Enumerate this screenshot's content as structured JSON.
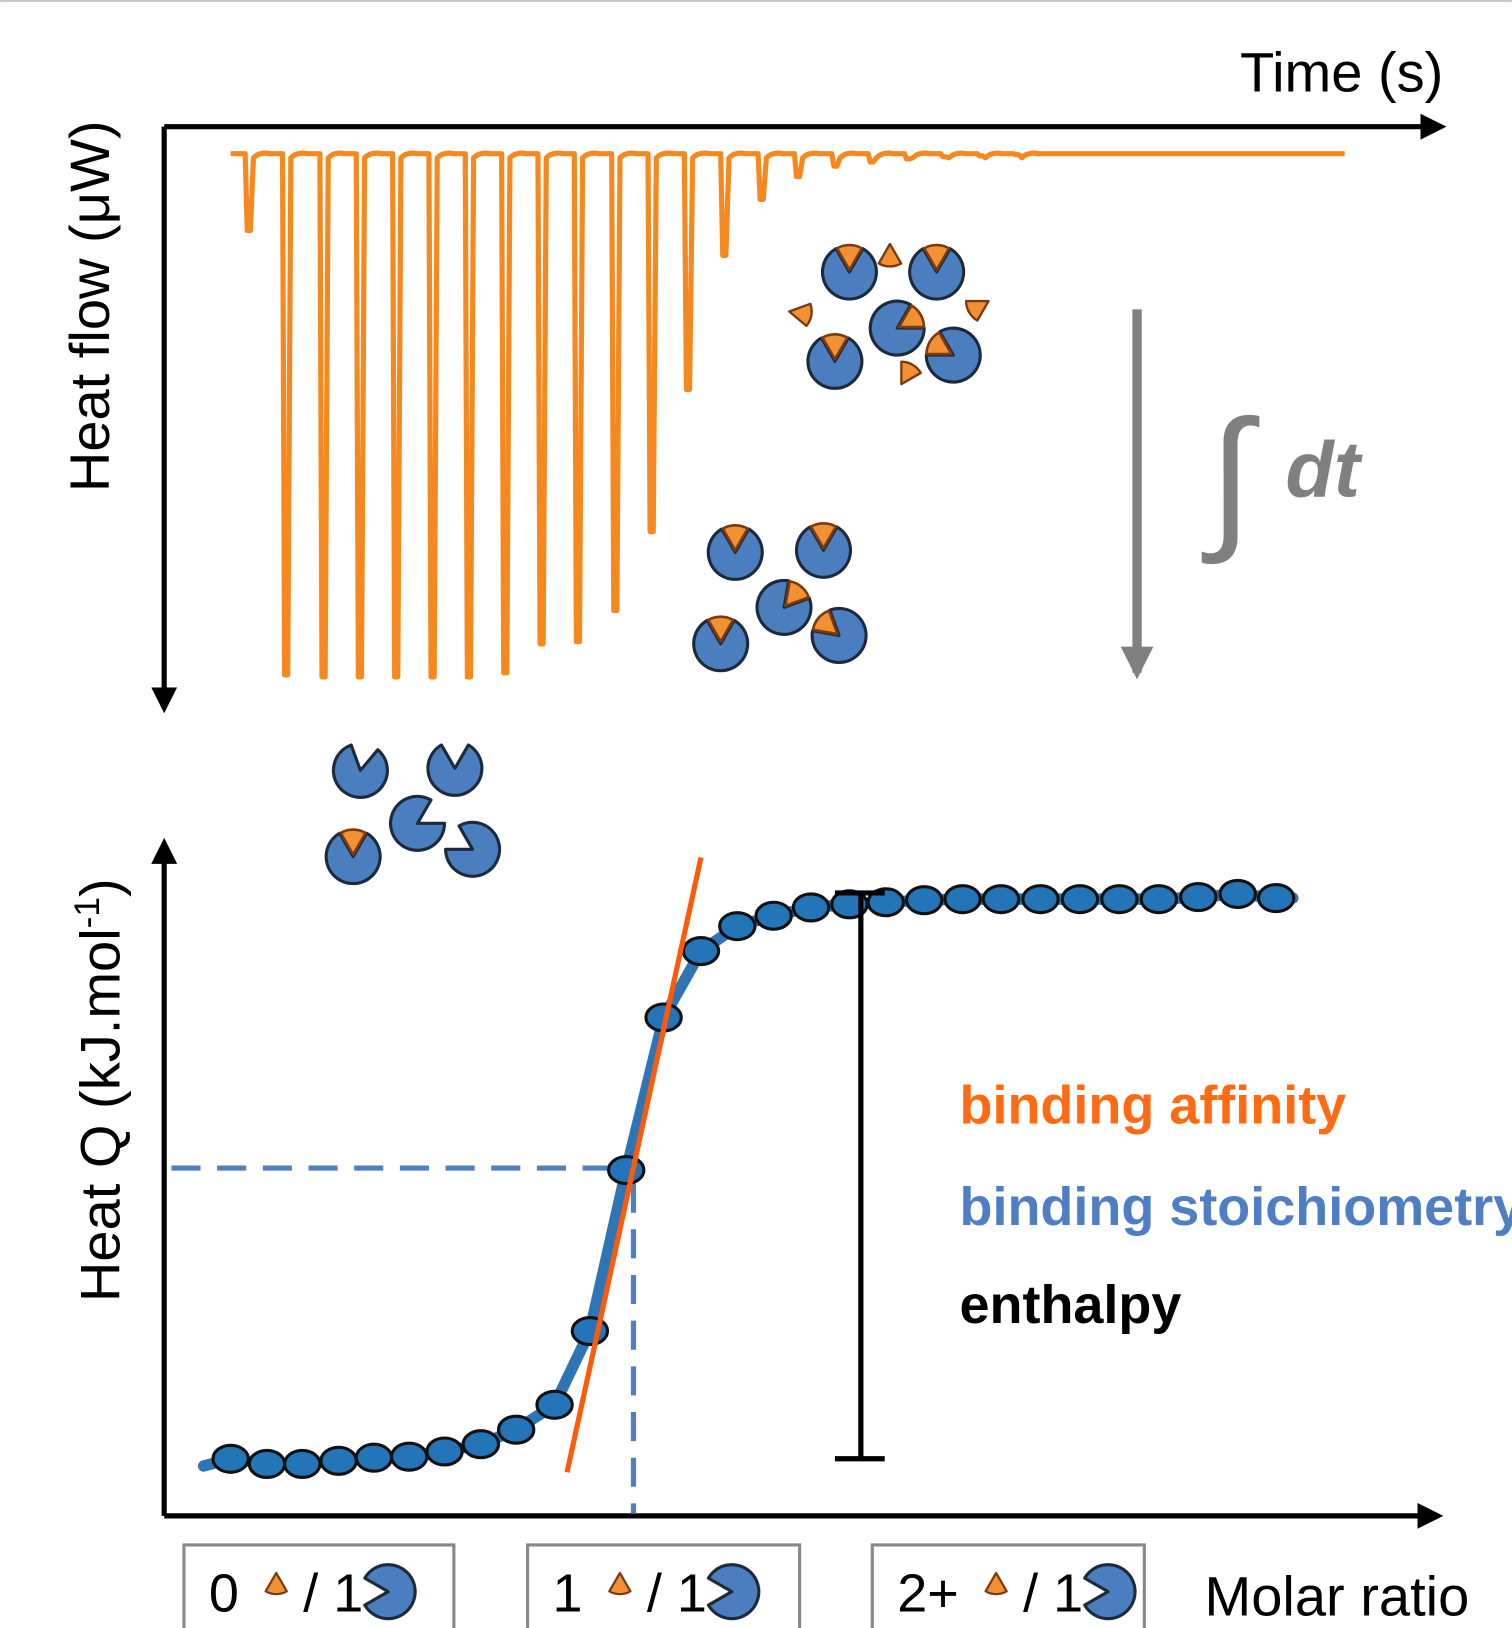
{
  "top_panel": {
    "x_axis_label": "Time (s)",
    "y_axis_label": "Heat flow (μW)",
    "integral_symbol": "∫",
    "integral_variable": "dt"
  },
  "bottom_panel": {
    "y_axis_label": {
      "text": "Heat Q (kJ.mol",
      "superscript": "-1",
      "close": ")"
    },
    "x_axis_label": "Molar ratio",
    "legend": [
      "binding affinity",
      "binding stoichiometry",
      "enthalpy"
    ],
    "ratio_boxes": [
      {
        "ligand": "0",
        "protein": "/ 1"
      },
      {
        "ligand": "1",
        "protein": "/ 1"
      },
      {
        "ligand": "2+",
        "protein": "/ 1"
      }
    ]
  }
}
